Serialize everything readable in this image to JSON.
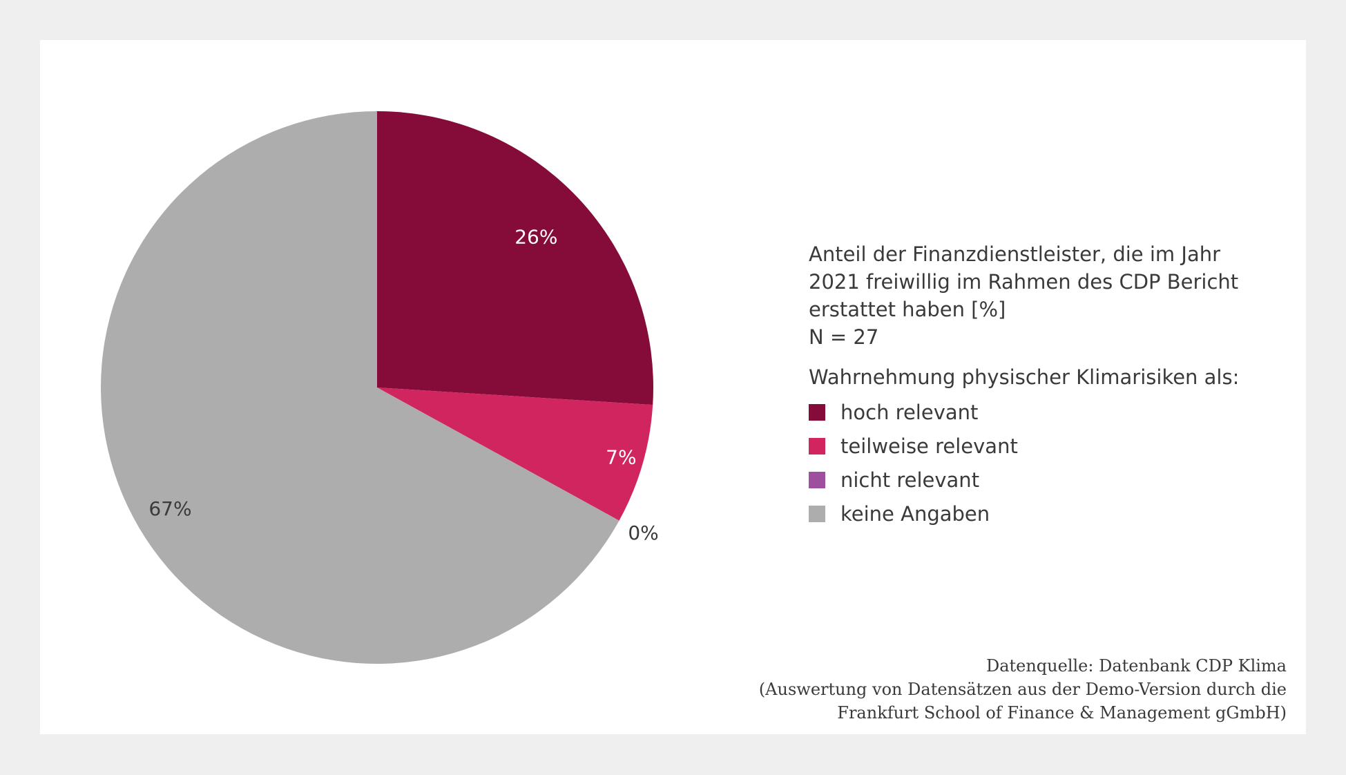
{
  "chart_data": {
    "type": "pie",
    "slices": [
      {
        "label": "hoch relevant",
        "value": 26,
        "value_label": "26%",
        "color": "#850c39",
        "label_color": "#ffffff"
      },
      {
        "label": "teilweise relevant",
        "value": 7,
        "value_label": "7%",
        "color": "#d0255f",
        "label_color": "#ffffff"
      },
      {
        "label": "nicht relevant",
        "value": 0,
        "value_label": "0%",
        "color": "#9e4f9e",
        "label_color": "#3a3a3a"
      },
      {
        "label": "keine Angaben",
        "value": 67,
        "value_label": "67%",
        "color": "#adadad",
        "label_color": "#3a3a3a"
      }
    ],
    "title": "Anteil der Finanzdienstleister, die im Jahr 2021 freiwillig im Rahmen des CDP Bericht erstattet haben [%]",
    "subtitle": "N = 27",
    "legend_title": "Wahrnehmung physischer Klimarisiken als:",
    "legend_position": "right",
    "start_angle": "12 o'clock",
    "direction": "clockwise"
  },
  "info": {
    "title_lines": [
      "Anteil der Finanzdienstleister, die im Jahr",
      "2021 freiwillig im Rahmen des CDP Bericht",
      "erstattet haben [%]"
    ],
    "n_line": "N = 27"
  },
  "source": {
    "lines": [
      "Datenquelle: Datenbank CDP Klima",
      "(Auswertung von Datensätzen aus der Demo-Version durch die",
      "Frankfurt School of Finance & Management gGmbH)"
    ]
  },
  "colors": {
    "background": "#efefef",
    "panel": "#ffffff",
    "text": "#3a3a3a"
  }
}
